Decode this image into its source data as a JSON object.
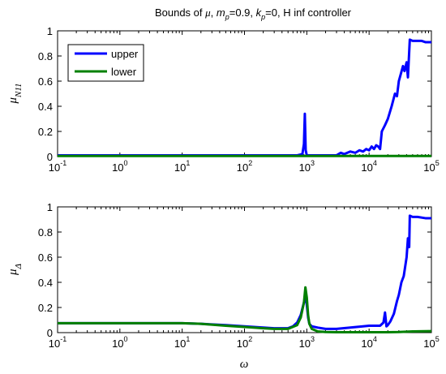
{
  "chart_data": [
    {
      "type": "line",
      "title_prefix": "Bounds of ",
      "title_mu": "μ",
      "title_mp": "m",
      "title_mp_sub": "p",
      "title_mp_val": "=0.9, ",
      "title_kp": "k",
      "title_kp_sub": "p",
      "title_kp_val": "=0, H inf controller",
      "ylabel_main": "μ",
      "ylabel_sub": "N11",
      "xscale": "log",
      "xlim": [
        0.1,
        100000
      ],
      "ylim": [
        0,
        1
      ],
      "xtick_base": "10",
      "xtick_exponents": [
        "-1",
        "0",
        "1",
        "2",
        "3",
        "4",
        "5"
      ],
      "ytick_labels": [
        "0",
        "0.2",
        "0.4",
        "0.6",
        "0.8",
        "1"
      ],
      "legend": {
        "position": "top-left",
        "entries": [
          "upper",
          "lower"
        ]
      },
      "colors": {
        "upper": "#0000ff",
        "lower": "#008000"
      },
      "series": [
        {
          "name": "upper",
          "x": [
            0.1,
            700,
            850,
            900,
            930,
            960,
            1000,
            2000,
            3000,
            3500,
            4000,
            5000,
            6000,
            7000,
            8000,
            9000,
            10000,
            11000,
            12000,
            13000,
            14000,
            15000,
            16000,
            18000,
            20000,
            23000,
            26000,
            28000,
            30000,
            32000,
            35000,
            37000,
            40000,
            42000,
            45000,
            50000,
            60000,
            70000,
            80000,
            100000
          ],
          "y": [
            0.01,
            0.01,
            0.02,
            0.1,
            0.34,
            0.05,
            0.01,
            0.01,
            0.01,
            0.03,
            0.02,
            0.04,
            0.03,
            0.05,
            0.04,
            0.06,
            0.05,
            0.08,
            0.06,
            0.09,
            0.08,
            0.06,
            0.2,
            0.25,
            0.3,
            0.4,
            0.5,
            0.48,
            0.6,
            0.65,
            0.72,
            0.68,
            0.75,
            0.63,
            0.93,
            0.92,
            0.92,
            0.92,
            0.91,
            0.91
          ]
        },
        {
          "name": "lower",
          "x": [
            0.1,
            100000
          ],
          "y": [
            0.005,
            0.005
          ]
        }
      ]
    },
    {
      "type": "line",
      "ylabel_main": "μ",
      "ylabel_sub": "Δ",
      "xlabel": "ω",
      "xscale": "log",
      "xlim": [
        0.1,
        100000
      ],
      "ylim": [
        0,
        1
      ],
      "xtick_base": "10",
      "xtick_exponents": [
        "-1",
        "0",
        "1",
        "2",
        "3",
        "4",
        "5"
      ],
      "ytick_labels": [
        "0",
        "0.2",
        "0.4",
        "0.6",
        "0.8",
        "1"
      ],
      "colors": {
        "upper": "#0000ff",
        "lower": "#008000"
      },
      "series": [
        {
          "name": "upper",
          "x": [
            0.1,
            2,
            10,
            20,
            50,
            100,
            200,
            300,
            400,
            500,
            600,
            700,
            800,
            900,
            950,
            1000,
            1050,
            1100,
            1200,
            1500,
            2000,
            3000,
            5000,
            8000,
            10000,
            15000,
            17000,
            18000,
            19000,
            20000,
            22000,
            25000,
            28000,
            30000,
            33000,
            36000,
            40000,
            42000,
            44000,
            45000,
            50000,
            60000,
            80000,
            100000
          ],
          "y": [
            0.075,
            0.075,
            0.075,
            0.07,
            0.06,
            0.05,
            0.04,
            0.035,
            0.035,
            0.035,
            0.05,
            0.08,
            0.14,
            0.24,
            0.3,
            0.22,
            0.12,
            0.07,
            0.05,
            0.04,
            0.03,
            0.03,
            0.04,
            0.05,
            0.055,
            0.055,
            0.08,
            0.16,
            0.05,
            0.06,
            0.09,
            0.15,
            0.25,
            0.3,
            0.4,
            0.45,
            0.6,
            0.75,
            0.68,
            0.93,
            0.92,
            0.92,
            0.91,
            0.91
          ]
        },
        {
          "name": "lower",
          "x": [
            0.1,
            2,
            10,
            20,
            50,
            100,
            200,
            300,
            500,
            700,
            800,
            900,
            950,
            1000,
            1050,
            1100,
            1200,
            1500,
            2000,
            3000,
            5000,
            10000,
            20000,
            30000,
            50000,
            100000
          ],
          "y": [
            0.075,
            0.075,
            0.075,
            0.07,
            0.055,
            0.045,
            0.035,
            0.03,
            0.03,
            0.06,
            0.12,
            0.24,
            0.36,
            0.28,
            0.14,
            0.07,
            0.03,
            0.01,
            0.005,
            0.003,
            0.003,
            0.003,
            0.003,
            0.005,
            0.01,
            0.012
          ]
        }
      ]
    }
  ]
}
